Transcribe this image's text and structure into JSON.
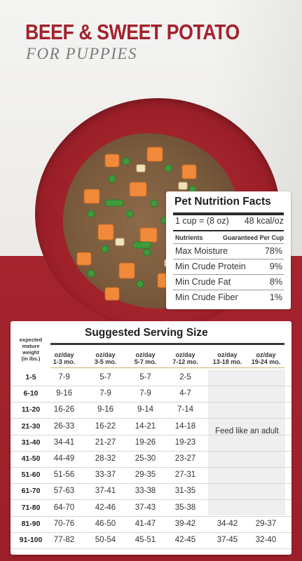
{
  "title": "BEEF & SWEET POTATO",
  "subtitle": "FOR PUPPIES",
  "nutrition": {
    "title": "Pet Nutrition Facts",
    "cup": "1 cup = (8 oz)",
    "kcal": "48 kcal/oz",
    "header_left": "Nutrients",
    "header_right": "Guaranteed Per Cup",
    "rows": [
      {
        "name": "Max Moisture",
        "value": "78%"
      },
      {
        "name": "Min Crude Protein",
        "value": "9%"
      },
      {
        "name": "Min Crude Fat",
        "value": "8%"
      },
      {
        "name": "Min Crude Fiber",
        "value": "1%"
      }
    ]
  },
  "serving": {
    "title": "Suggested Serving Size",
    "weight_header": [
      "expected",
      "mature",
      "weight",
      "(in lbs.)"
    ],
    "columns": [
      [
        "oz/day",
        "1-3 mo."
      ],
      [
        "oz/day",
        "3-5 mo."
      ],
      [
        "oz/day",
        "5-7 mo."
      ],
      [
        "oz/day",
        "7-12 mo."
      ],
      [
        "oz/day",
        "13-18 mo."
      ],
      [
        "oz/day",
        "19-24 mo."
      ]
    ],
    "feed_note": "Feed like an adult",
    "rows": [
      {
        "weight": "1-5",
        "values": [
          "7-9",
          "5-7",
          "5-7",
          "2-5",
          "",
          ""
        ]
      },
      {
        "weight": "6-10",
        "values": [
          "9-16",
          "7-9",
          "7-9",
          "4-7",
          "",
          ""
        ]
      },
      {
        "weight": "11-20",
        "values": [
          "16-26",
          "9-16",
          "9-14",
          "7-14",
          "",
          ""
        ]
      },
      {
        "weight": "21-30",
        "values": [
          "26-33",
          "16-22",
          "14-21",
          "14-18",
          "",
          ""
        ]
      },
      {
        "weight": "31-40",
        "values": [
          "34-41",
          "21-27",
          "19-26",
          "19-23",
          "",
          ""
        ]
      },
      {
        "weight": "41-50",
        "values": [
          "44-49",
          "28-32",
          "25-30",
          "23-27",
          "",
          ""
        ]
      },
      {
        "weight": "51-60",
        "values": [
          "51-56",
          "33-37",
          "29-35",
          "27-31",
          "",
          ""
        ]
      },
      {
        "weight": "61-70",
        "values": [
          "57-63",
          "37-41",
          "33-38",
          "31-35",
          "",
          ""
        ]
      },
      {
        "weight": "71-80",
        "values": [
          "64-70",
          "42-46",
          "37-43",
          "35-38",
          "",
          ""
        ]
      },
      {
        "weight": "81-90",
        "values": [
          "70-76",
          "46-50",
          "41-47",
          "39-42",
          "34-42",
          "29-37"
        ]
      },
      {
        "weight": "91-100",
        "values": [
          "77-82",
          "50-54",
          "45-51",
          "42-45",
          "37-45",
          "32-40"
        ]
      }
    ]
  },
  "colors": {
    "brand_red": "#a2222c",
    "subtitle_grey": "#7a7a7a",
    "panel_white": "#ffffff"
  }
}
